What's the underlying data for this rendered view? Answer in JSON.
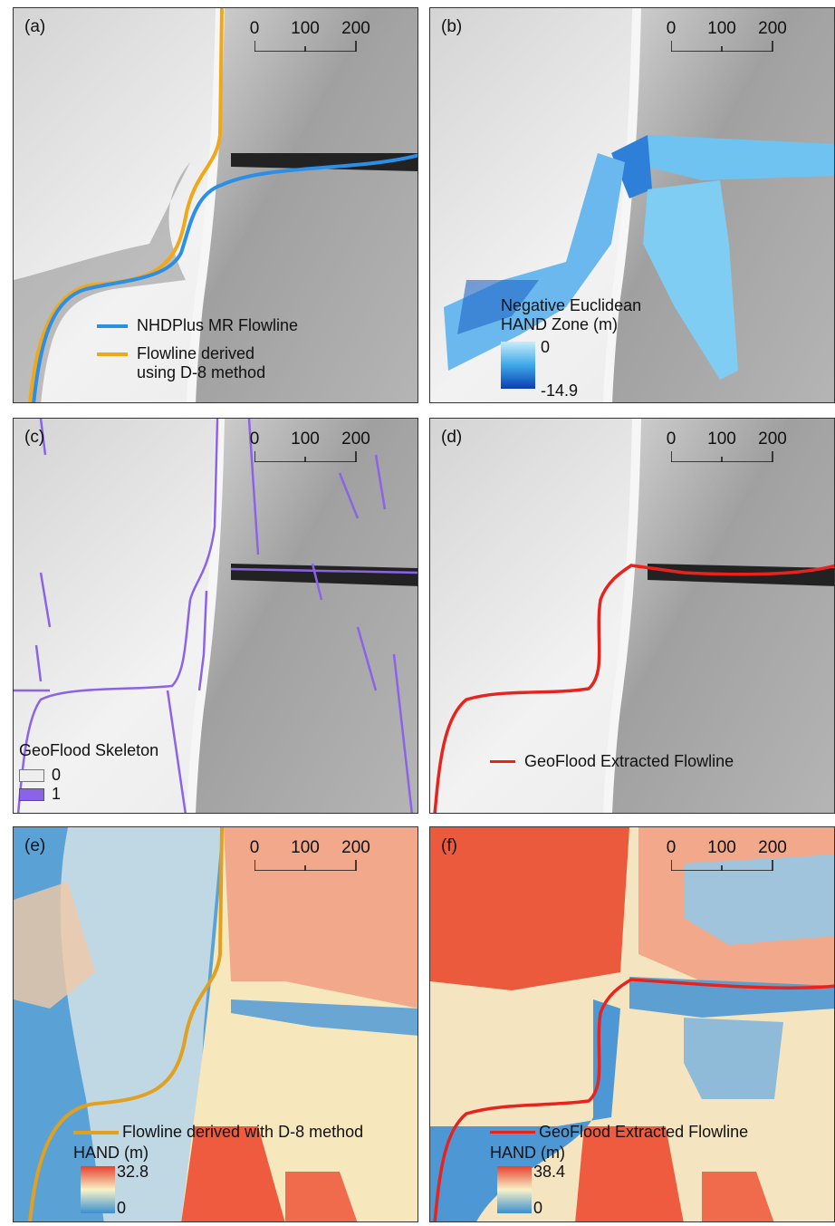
{
  "panels": [
    {
      "id": "a",
      "label": "(a)",
      "scale": {
        "ticks": [
          "0",
          "100",
          "200"
        ]
      },
      "legend": [
        {
          "text": "NHDPlus MR Flowline",
          "color": "#2b8fe6"
        },
        {
          "text": "Flowline derived",
          "color": "#f0a818"
        },
        {
          "text": "using D-8 method"
        }
      ]
    },
    {
      "id": "b",
      "label": "(b)",
      "scale": {
        "ticks": [
          "0",
          "100",
          "200"
        ]
      },
      "legend": {
        "title1": "Negative Euclidean",
        "title2": "HAND  Zone (m)",
        "max": "0",
        "min": "-14.9"
      }
    },
    {
      "id": "c",
      "label": "(c)",
      "scale": {
        "ticks": [
          "0",
          "100",
          "200"
        ]
      },
      "legend": {
        "title": "GeoFlood Skeleton",
        "items": [
          "0",
          "1"
        ]
      }
    },
    {
      "id": "d",
      "label": "(d)",
      "scale": {
        "ticks": [
          "0",
          "100",
          "200"
        ]
      },
      "legend": {
        "text": "GeoFlood Extracted Flowline",
        "color": "#e8231e"
      }
    },
    {
      "id": "e",
      "label": "(e)",
      "scale": {
        "ticks": [
          "0",
          "100",
          "200"
        ]
      },
      "legend": {
        "line": "Flowline derived with D-8 method",
        "title": "HAND  (m)",
        "max": "32.8",
        "min": "0",
        "color": "#e0a020"
      }
    },
    {
      "id": "f",
      "label": "(f)",
      "scale": {
        "ticks": [
          "0",
          "100",
          "200"
        ]
      },
      "legend": {
        "line": "GeoFlood Extracted Flowline",
        "title": "HAND  (m)",
        "max": "38.4",
        "min": "0",
        "color": "#e8231e"
      }
    }
  ]
}
